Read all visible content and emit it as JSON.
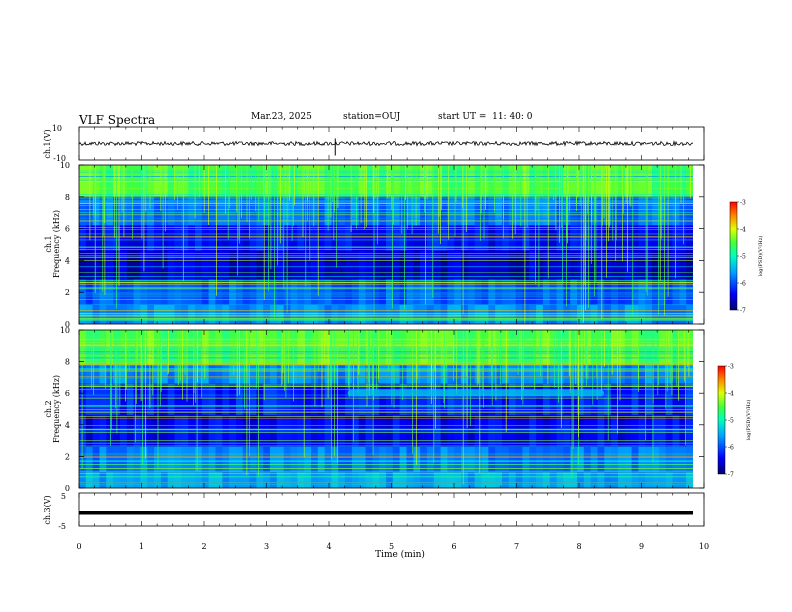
{
  "header": {
    "title": "VLF Spectra",
    "date": "Mar.23, 2025",
    "station": "station=OUJ",
    "start": "start UT =  11: 40: 0"
  },
  "chart_data": [
    {
      "type": "line",
      "panel": "ch1-waveform",
      "ylabel": "ch.1(V)",
      "ylim": [
        -10,
        10
      ],
      "yticks": [
        "10",
        "-10"
      ],
      "xlim": [
        0,
        10
      ],
      "series": [
        {
          "approx_level": 0
        }
      ],
      "spike_times": [
        4.1
      ]
    },
    {
      "type": "heatmap",
      "panel": "ch1-spectrogram",
      "ylabel_top": "ch.1",
      "ylabel": "Frequency (kHz)",
      "ylim": [
        0,
        10
      ],
      "yticks": [
        "0",
        "2",
        "4",
        "6",
        "8",
        "10"
      ],
      "xlim": [
        0,
        10
      ],
      "colorbar": {
        "label": "log(PSD)(V²/Hz)",
        "range": [
          -7,
          -3
        ],
        "ticks": [
          "-3",
          "-4",
          "-5",
          "-6",
          "-7"
        ]
      }
    },
    {
      "type": "heatmap",
      "panel": "ch2-spectrogram",
      "ylabel_top": "ch.2",
      "ylabel": "Frequency (kHz)",
      "ylim": [
        0,
        10
      ],
      "yticks": [
        "0",
        "2",
        "4",
        "6",
        "8",
        "10"
      ],
      "xlim": [
        0,
        10
      ],
      "colorbar": {
        "label": "log(PSD)(V²/Hz)",
        "range": [
          -7,
          -3
        ],
        "ticks": [
          "-3",
          "-4",
          "-5",
          "-6",
          "-7"
        ]
      }
    },
    {
      "type": "line",
      "panel": "ch3-waveform",
      "ylabel": "ch.3(V)",
      "ylim": [
        -5,
        5
      ],
      "yticks": [
        "5",
        "-5"
      ],
      "xlim": [
        0,
        10
      ],
      "series": [
        {
          "approx_level": -1
        }
      ],
      "xlabel": "Time (min)",
      "xticks": [
        "0",
        "1",
        "2",
        "3",
        "4",
        "5",
        "6",
        "7",
        "8",
        "9",
        "10"
      ]
    }
  ],
  "colors": {
    "psd_low": "#00008b",
    "psd_mid": "#00ff7f",
    "psd_high": "#ff0000",
    "trace": "#000000"
  }
}
